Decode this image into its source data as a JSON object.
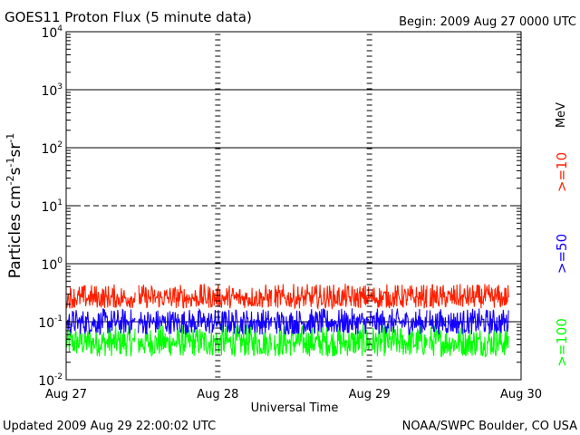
{
  "chart_data": {
    "type": "line",
    "title": "GOES11 Proton Flux (5 minute data)",
    "begin_label": "Begin: 2009 Aug 27 0000 UTC",
    "xlabel": "Universal Time",
    "ylabel_parts": [
      "Particles cm",
      "-2",
      "s",
      "-1",
      "sr",
      "-1"
    ],
    "y_scale": "log",
    "ylim": [
      0.01,
      10000
    ],
    "y_ticks": [
      {
        "value": 10000,
        "base": "10",
        "exp": "4"
      },
      {
        "value": 1000,
        "base": "10",
        "exp": "3"
      },
      {
        "value": 100,
        "base": "10",
        "exp": "2"
      },
      {
        "value": 10,
        "base": "10",
        "exp": "1"
      },
      {
        "value": 1,
        "base": "10",
        "exp": "0"
      },
      {
        "value": 0.1,
        "base": "10",
        "exp": "-1"
      },
      {
        "value": 0.01,
        "base": "10",
        "exp": "-2"
      }
    ],
    "x_ticks": [
      "Aug 27",
      "Aug 28",
      "Aug 29",
      "Aug 30"
    ],
    "xlim_days": [
      0,
      3
    ],
    "data_end_day": 2.917,
    "threshold_line": 10,
    "series": [
      {
        "name": ">=10",
        "color": "#ff2000",
        "low": 0.17,
        "high": 0.45,
        "typical": 0.26
      },
      {
        "name": ">=50",
        "color": "#1400ff",
        "low": 0.06,
        "high": 0.17,
        "typical": 0.1
      },
      {
        "name": ">=100",
        "color": "#00ff00",
        "low": 0.025,
        "high": 0.09,
        "typical": 0.045
      }
    ],
    "unit_label": "MeV"
  },
  "footer": {
    "updated": "Updated 2009 Aug 29 22:00:02 UTC",
    "credit": "NOAA/SWPC Boulder, CO USA"
  }
}
